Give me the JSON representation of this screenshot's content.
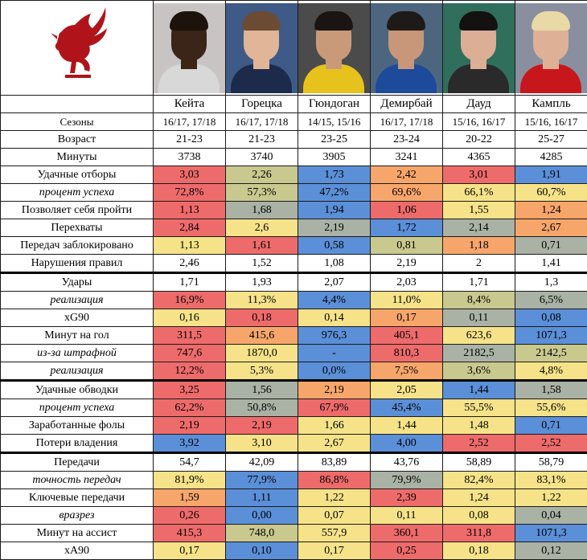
{
  "colors": {
    "red": "#ee6b6b",
    "orange": "#f7a66b",
    "yellow": "#f6e389",
    "olive": "#c9c88e",
    "grey": "#a9b2a4",
    "blue": "#5b8fd8",
    "white": "#ffffff"
  },
  "logo": {
    "icon": "liver-bird-icon",
    "color": "#b0141a"
  },
  "players": [
    {
      "name": "Кейта",
      "seasons": "16/17, 17/18",
      "photo_bg": "#c9c4c4",
      "skin": "#3b2418",
      "hair": "#1c130d",
      "shirt": "#d8d8d8"
    },
    {
      "name": "Горецка",
      "seasons": "16/17, 17/18",
      "photo_bg": "#3e5a86",
      "skin": "#e1b598",
      "hair": "#6b4c33",
      "shirt": "#1c2b4b"
    },
    {
      "name": "Гюндоган",
      "seasons": "14/15, 15/16",
      "photo_bg": "#4b4b4b",
      "skin": "#c99a7a",
      "hair": "#1a1512",
      "shirt": "#e8c21c"
    },
    {
      "name": "Демирбай",
      "seasons": "16/17, 17/18",
      "photo_bg": "#4d6680",
      "skin": "#c8977a",
      "hair": "#1e1a17",
      "shirt": "#1d4a9a"
    },
    {
      "name": "Дауд",
      "seasons": "15/16, 16/17",
      "photo_bg": "#2f6f5b",
      "skin": "#dcae95",
      "hair": "#141210",
      "shirt": "#2a2a2a"
    },
    {
      "name": "Кампль",
      "seasons": "15/16, 16/17",
      "photo_bg": "#8a8fa0",
      "skin": "#deb196",
      "hair": "#e9d9a6",
      "shirt": "#c7171c"
    }
  ],
  "header": {
    "seasons_label": "Сезоны"
  },
  "rows": [
    {
      "label": "Возраст",
      "italic": false,
      "sep": false,
      "cells": [
        [
          "21-23",
          "white"
        ],
        [
          "21-23",
          "white"
        ],
        [
          "23-25",
          "white"
        ],
        [
          "23-24",
          "white"
        ],
        [
          "20-22",
          "white"
        ],
        [
          "25-27",
          "white"
        ]
      ]
    },
    {
      "label": "Минуты",
      "italic": false,
      "sep": false,
      "cells": [
        [
          "3738",
          "white"
        ],
        [
          "3740",
          "white"
        ],
        [
          "3905",
          "white"
        ],
        [
          "3241",
          "white"
        ],
        [
          "4365",
          "white"
        ],
        [
          "4285",
          "white"
        ]
      ]
    },
    {
      "label": "Удачные отборы",
      "italic": false,
      "sep": false,
      "cells": [
        [
          "3,03",
          "red"
        ],
        [
          "2,26",
          "olive"
        ],
        [
          "1,73",
          "blue"
        ],
        [
          "2,42",
          "orange"
        ],
        [
          "3,01",
          "red"
        ],
        [
          "1,91",
          "blue"
        ]
      ]
    },
    {
      "label": "процент успеха",
      "italic": true,
      "sep": false,
      "cells": [
        [
          "72,8%",
          "red"
        ],
        [
          "57,3%",
          "olive"
        ],
        [
          "47,2%",
          "blue"
        ],
        [
          "69,6%",
          "orange"
        ],
        [
          "66,1%",
          "yellow"
        ],
        [
          "60,7%",
          "yellow"
        ]
      ]
    },
    {
      "label": "Позволяет себя пройти",
      "italic": false,
      "sep": false,
      "cells": [
        [
          "1,13",
          "red"
        ],
        [
          "1,68",
          "grey"
        ],
        [
          "1,94",
          "blue"
        ],
        [
          "1,06",
          "red"
        ],
        [
          "1,55",
          "yellow"
        ],
        [
          "1,24",
          "orange"
        ]
      ]
    },
    {
      "label": "Перехваты",
      "italic": false,
      "sep": false,
      "cells": [
        [
          "2,84",
          "red"
        ],
        [
          "2,6",
          "yellow"
        ],
        [
          "2,19",
          "grey"
        ],
        [
          "1,72",
          "blue"
        ],
        [
          "2,14",
          "grey"
        ],
        [
          "2,67",
          "orange"
        ]
      ]
    },
    {
      "label": "Передач заблокировано",
      "italic": false,
      "sep": false,
      "cells": [
        [
          "1,13",
          "yellow"
        ],
        [
          "1,61",
          "red"
        ],
        [
          "0,58",
          "blue"
        ],
        [
          "0,81",
          "olive"
        ],
        [
          "1,18",
          "orange"
        ],
        [
          "0,71",
          "grey"
        ]
      ]
    },
    {
      "label": "Нарушения правил",
      "italic": false,
      "sep": false,
      "cells": [
        [
          "2,46",
          "white"
        ],
        [
          "1,52",
          "white"
        ],
        [
          "1,08",
          "white"
        ],
        [
          "2,19",
          "white"
        ],
        [
          "2",
          "white"
        ],
        [
          "1,41",
          "white"
        ]
      ]
    },
    {
      "label": "Удары",
      "italic": false,
      "sep": true,
      "cells": [
        [
          "1,71",
          "white"
        ],
        [
          "1,93",
          "white"
        ],
        [
          "2,07",
          "white"
        ],
        [
          "2,03",
          "white"
        ],
        [
          "1,71",
          "white"
        ],
        [
          "1,3",
          "white"
        ]
      ]
    },
    {
      "label": "реализация",
      "italic": true,
      "sep": false,
      "cells": [
        [
          "16,9%",
          "red"
        ],
        [
          "11,3%",
          "yellow"
        ],
        [
          "4,4%",
          "blue"
        ],
        [
          "11,0%",
          "yellow"
        ],
        [
          "8,4%",
          "olive"
        ],
        [
          "6,5%",
          "grey"
        ]
      ]
    },
    {
      "label": "xG90",
      "italic": false,
      "sep": false,
      "cells": [
        [
          "0,16",
          "yellow"
        ],
        [
          "0,18",
          "red"
        ],
        [
          "0,14",
          "yellow"
        ],
        [
          "0,17",
          "orange"
        ],
        [
          "0,11",
          "grey"
        ],
        [
          "0,08",
          "blue"
        ]
      ]
    },
    {
      "label": "Минут на гол",
      "italic": false,
      "sep": false,
      "cells": [
        [
          "311,5",
          "red"
        ],
        [
          "415,6",
          "orange"
        ],
        [
          "976,3",
          "blue"
        ],
        [
          "405,1",
          "red"
        ],
        [
          "623,6",
          "yellow"
        ],
        [
          "1071,3",
          "blue"
        ]
      ]
    },
    {
      "label": "из-за штрафной",
      "italic": true,
      "sep": false,
      "cells": [
        [
          "747,6",
          "red"
        ],
        [
          "1870,0",
          "yellow"
        ],
        [
          "-",
          "blue"
        ],
        [
          "810,3",
          "red"
        ],
        [
          "2182,5",
          "grey"
        ],
        [
          "2142,5",
          "olive"
        ]
      ]
    },
    {
      "label": "реализация",
      "italic": true,
      "sep": false,
      "cells": [
        [
          "12,2%",
          "red"
        ],
        [
          "5,3%",
          "yellow"
        ],
        [
          "0,0%",
          "blue"
        ],
        [
          "7,5%",
          "orange"
        ],
        [
          "3,6%",
          "olive"
        ],
        [
          "4,8%",
          "yellow"
        ]
      ]
    },
    {
      "label": "Удачные обводки",
      "italic": false,
      "sep": true,
      "cells": [
        [
          "3,25",
          "red"
        ],
        [
          "1,56",
          "grey"
        ],
        [
          "2,19",
          "orange"
        ],
        [
          "2,05",
          "yellow"
        ],
        [
          "1,44",
          "blue"
        ],
        [
          "1,58",
          "grey"
        ]
      ]
    },
    {
      "label": "процент успеха",
      "italic": true,
      "sep": false,
      "cells": [
        [
          "62,2%",
          "red"
        ],
        [
          "50,8%",
          "grey"
        ],
        [
          "67,9%",
          "red"
        ],
        [
          "45,4%",
          "blue"
        ],
        [
          "55,5%",
          "yellow"
        ],
        [
          "55,6%",
          "yellow"
        ]
      ]
    },
    {
      "label": "Заработанные фолы",
      "italic": false,
      "sep": false,
      "cells": [
        [
          "2,19",
          "red"
        ],
        [
          "2,19",
          "red"
        ],
        [
          "1,66",
          "yellow"
        ],
        [
          "1,44",
          "yellow"
        ],
        [
          "1,48",
          "yellow"
        ],
        [
          "0,71",
          "blue"
        ]
      ]
    },
    {
      "label": "Потери владения",
      "italic": false,
      "sep": false,
      "cells": [
        [
          "3,92",
          "blue"
        ],
        [
          "3,10",
          "yellow"
        ],
        [
          "2,67",
          "yellow"
        ],
        [
          "4,00",
          "blue"
        ],
        [
          "2,52",
          "red"
        ],
        [
          "2,52",
          "red"
        ]
      ]
    },
    {
      "label": "Передачи",
      "italic": false,
      "sep": true,
      "cells": [
        [
          "54,7",
          "white"
        ],
        [
          "42,09",
          "white"
        ],
        [
          "83,89",
          "white"
        ],
        [
          "43,76",
          "white"
        ],
        [
          "58,89",
          "white"
        ],
        [
          "58,79",
          "white"
        ]
      ]
    },
    {
      "label": "точность передач",
      "italic": true,
      "sep": false,
      "cells": [
        [
          "81,9%",
          "yellow"
        ],
        [
          "77,9%",
          "blue"
        ],
        [
          "86,8%",
          "red"
        ],
        [
          "79,9%",
          "grey"
        ],
        [
          "82,4%",
          "yellow"
        ],
        [
          "83,1%",
          "yellow"
        ]
      ]
    },
    {
      "label": "Ключевые передачи",
      "italic": false,
      "sep": false,
      "cells": [
        [
          "1,59",
          "orange"
        ],
        [
          "1,11",
          "blue"
        ],
        [
          "1,22",
          "yellow"
        ],
        [
          "2,39",
          "red"
        ],
        [
          "1,24",
          "yellow"
        ],
        [
          "1,22",
          "yellow"
        ]
      ]
    },
    {
      "label": "вразрез",
      "italic": true,
      "sep": false,
      "cells": [
        [
          "0,26",
          "red"
        ],
        [
          "0,00",
          "blue"
        ],
        [
          "0,07",
          "yellow"
        ],
        [
          "0,11",
          "yellow"
        ],
        [
          "0,08",
          "yellow"
        ],
        [
          "0,04",
          "grey"
        ]
      ]
    },
    {
      "label": "Минут на ассист",
      "italic": false,
      "sep": false,
      "cells": [
        [
          "415,3",
          "red"
        ],
        [
          "748,0",
          "olive"
        ],
        [
          "557,9",
          "yellow"
        ],
        [
          "360,1",
          "red"
        ],
        [
          "311,8",
          "red"
        ],
        [
          "1071,3",
          "blue"
        ]
      ]
    },
    {
      "label": "xA90",
      "italic": false,
      "sep": false,
      "cells": [
        [
          "0,17",
          "yellow"
        ],
        [
          "0,10",
          "blue"
        ],
        [
          "0,17",
          "yellow"
        ],
        [
          "0,25",
          "red"
        ],
        [
          "0,18",
          "yellow"
        ],
        [
          "0,12",
          "grey"
        ]
      ]
    }
  ]
}
